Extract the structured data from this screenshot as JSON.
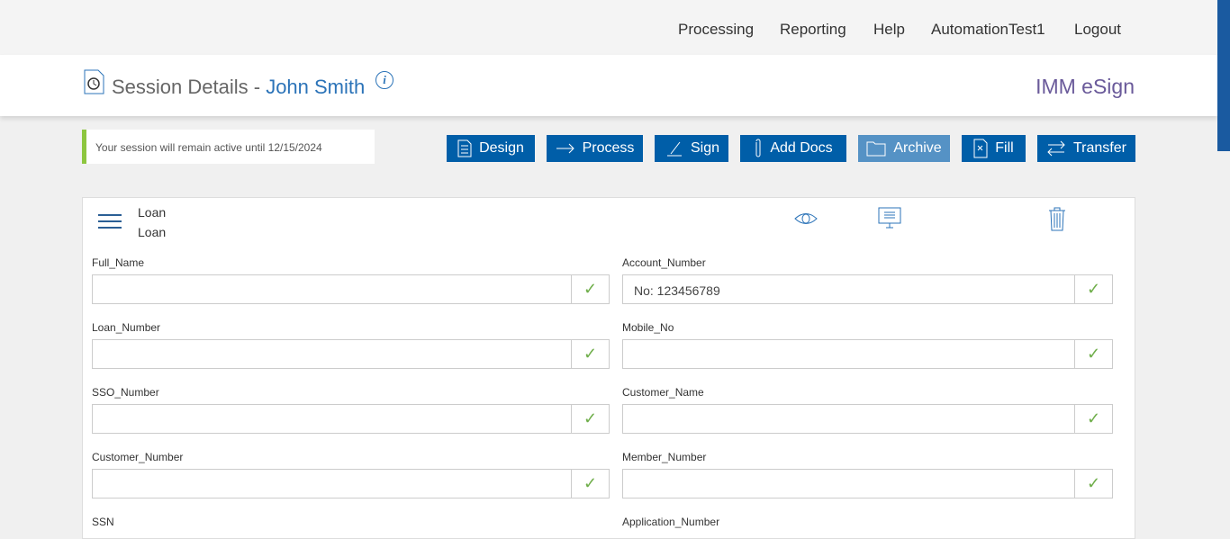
{
  "nav": [
    "Processing",
    "Reporting",
    "Help",
    "AutomationTest1",
    "Logout"
  ],
  "header": {
    "title": "Session Details - ",
    "name": "John Smith",
    "info": "i",
    "brand": "IMM eSign"
  },
  "notice": "Your session will remain active until 12/15/2024",
  "buttons": [
    "Design",
    "Process",
    "Sign",
    "Add Docs",
    "Archive",
    "Fill",
    "Transfer"
  ],
  "card": {
    "line1": "Loan",
    "line2": "Loan"
  },
  "fields": [
    {
      "label": "Full_Name",
      "value": ""
    },
    {
      "label": "Account_Number",
      "value": "No: 123456789"
    },
    {
      "label": "Loan_Number",
      "value": ""
    },
    {
      "label": "Mobile_No",
      "value": ""
    },
    {
      "label": "SSO_Number",
      "value": ""
    },
    {
      "label": "Customer_Name",
      "value": ""
    },
    {
      "label": "Customer_Number",
      "value": ""
    },
    {
      "label": "Member_Number",
      "value": ""
    },
    {
      "label": "SSN",
      "value": ""
    },
    {
      "label": "Application_Number",
      "value": ""
    }
  ],
  "check": "✓"
}
